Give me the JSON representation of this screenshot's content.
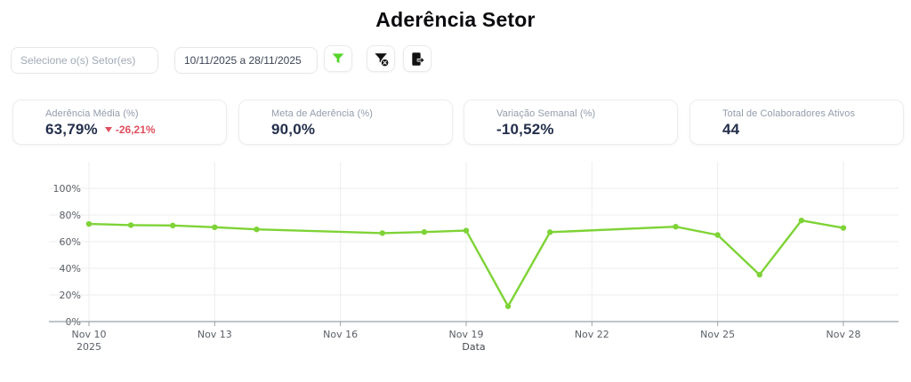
{
  "title": "Aderência Setor",
  "filters": {
    "sector_placeholder": "Selecione o(s) Setor(es)",
    "date_range_value": "10/11/2025 a 28/11/2025",
    "apply_button_icon": "funnel-icon",
    "clear_button_icon": "funnel-clear-icon",
    "export_button_icon": "file-export-icon"
  },
  "kpi_cards": [
    {
      "label": "Aderência Média (%)",
      "value": "63,79%",
      "delta": "-26,21%",
      "delta_direction": "down"
    },
    {
      "label": "Meta de Aderência (%)",
      "value": "90,0%"
    },
    {
      "label": "Variação Semanal (%)",
      "value": "-10,52%"
    },
    {
      "label": "Total de Colaboradores Ativos",
      "value": "44"
    }
  ],
  "chart_data": {
    "type": "line",
    "title": "",
    "xlabel": "Data",
    "ylabel": "",
    "month": "Nov",
    "year_label": "2025",
    "days": [
      10,
      11,
      12,
      13,
      14,
      17,
      18,
      19,
      20,
      21,
      24,
      25,
      26,
      27,
      28
    ],
    "values": [
      73.3,
      72.4,
      72.1,
      70.8,
      69.2,
      66.4,
      67.2,
      68.3,
      11.5,
      67.1,
      71.2,
      65.0,
      35.2,
      75.9,
      70.3
    ],
    "x_tick_days": [
      10,
      13,
      16,
      19,
      22,
      25,
      28
    ],
    "x_tick_labels": [
      "Nov 10",
      "Nov 13",
      "Nov 16",
      "Nov 19",
      "Nov 22",
      "Nov 25",
      "Nov 28"
    ],
    "y_tick_values": [
      0,
      20,
      40,
      60,
      80,
      100
    ],
    "y_tick_labels": [
      "0%",
      "20%",
      "40%",
      "60%",
      "80%",
      "100%"
    ],
    "ylim": [
      0,
      100
    ],
    "x_range_days": [
      9,
      29.3
    ],
    "grid": true,
    "legend": "none"
  },
  "colors": {
    "line_green": "#7ed336",
    "icon_green": "#55d42a",
    "icon_dark": "#121212",
    "delta_red": "#e04f5f",
    "value_navy": "#232f4b",
    "label_gray": "#939cab",
    "gridline": "#ededed",
    "axis_line": "#9aa0a6"
  }
}
